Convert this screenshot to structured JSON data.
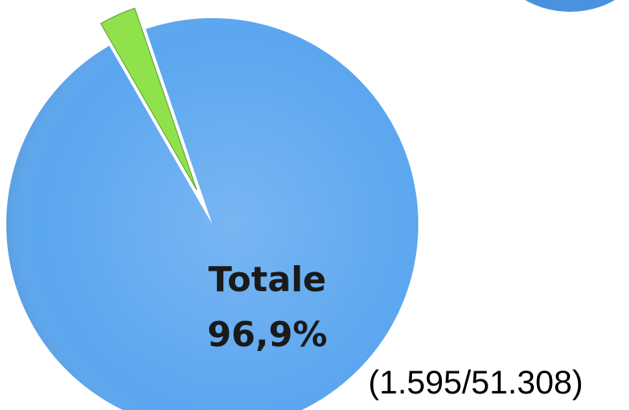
{
  "chart_data": {
    "type": "pie",
    "categories": [
      "Totale",
      null
    ],
    "values": [
      96.9,
      3.1
    ],
    "value_labels": [
      "96,9%",
      null
    ],
    "colors": [
      "#5aa6ef",
      "#8fe24c"
    ],
    "annotation": "(1.595/51.308)"
  }
}
